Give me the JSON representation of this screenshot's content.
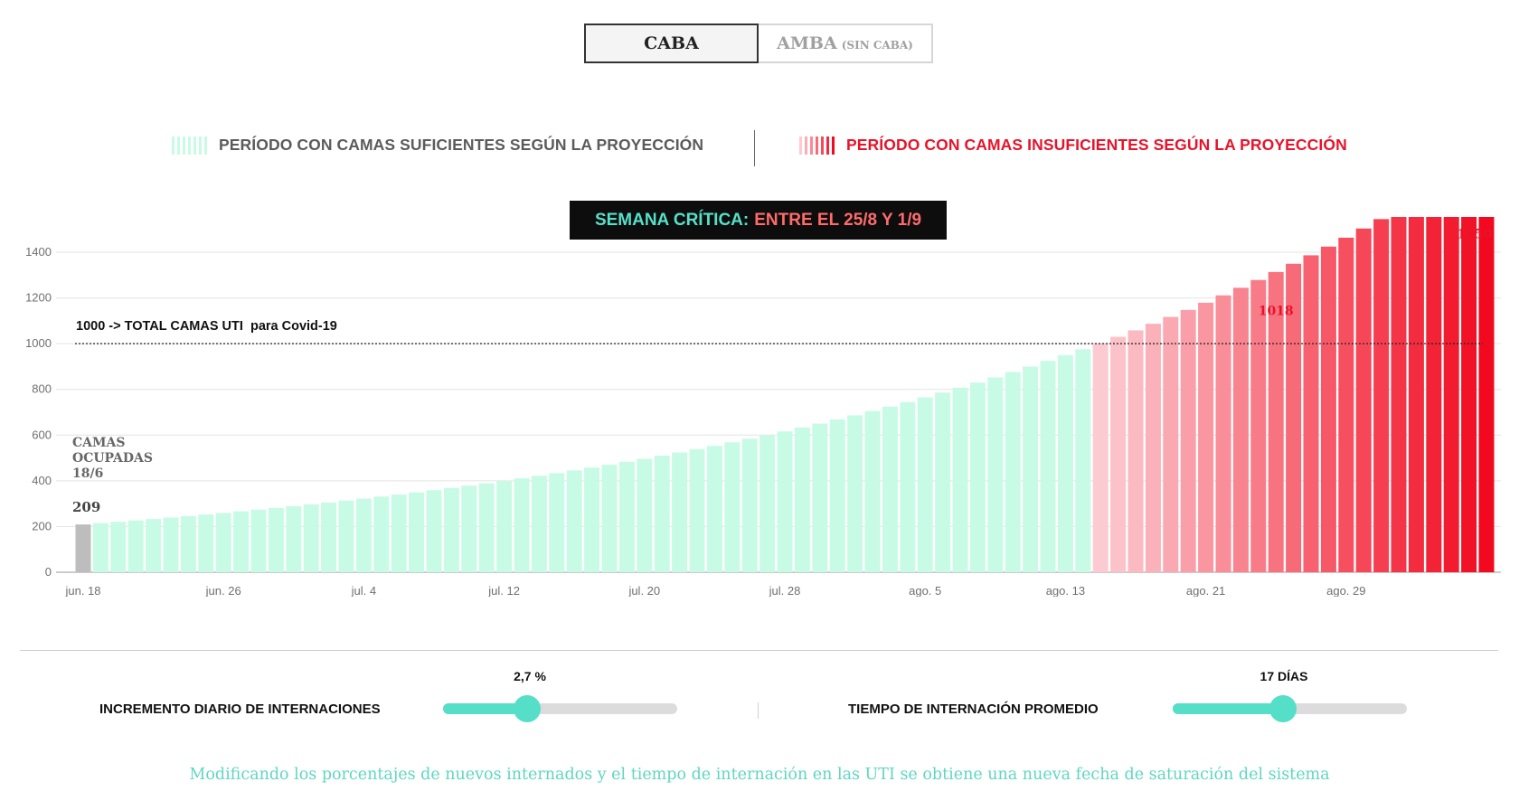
{
  "toggle": {
    "caba_label": "CABA",
    "amba_label": "AMBA",
    "amba_sub": "(SIN CABA)"
  },
  "legend": {
    "sufficient": "PERÍODO CON CAMAS SUFICIENTES SEGÚN LA PROYECCIÓN",
    "insufficient": "PERÍODO CON CAMAS INSUFICIENTES SEGÚN LA PROYECCIÓN"
  },
  "critical": {
    "prefix": "SEMANA CRÍTICA:",
    "range": "ENTRE EL 25/8 Y 1/9"
  },
  "colors": {
    "sufficient": "#c8fbe6",
    "insufficient_light": "#fccbd1",
    "insufficient_dark": "#f2091f",
    "occupied": "#bdbdbd",
    "accent": "#55dec8"
  },
  "controls": {
    "increment": {
      "label": "INCREMENTO DIARIO DE INTERNACIONES",
      "value": "2,7 %",
      "level": 0.36
    },
    "duration": {
      "label": "TIEMPO DE INTERNACIÓN PROMEDIO",
      "value": "17 DÍAS",
      "level": 0.47
    }
  },
  "footnote": "Modificando los porcentajes de nuevos internados y el tiempo de internación en las UTI se obtiene una nueva fecha de saturación del sistema",
  "chart_data": {
    "type": "bar",
    "x_start": "2020-06-18",
    "x_end": "2020-09-06",
    "xticks": [
      "jun. 18",
      "jun. 26",
      "jul. 4",
      "jul. 12",
      "jul. 20",
      "jul. 28",
      "ago. 5",
      "ago. 13",
      "ago. 21",
      "ago. 29"
    ],
    "yticks": [
      "0",
      "200",
      "400",
      "600",
      "800",
      "1000",
      "1200",
      "1400"
    ],
    "ylim": [
      0,
      1400
    ],
    "grid": true,
    "first_value": 209,
    "last_value": 1350,
    "daily_growth": 0.0274,
    "threshold": {
      "value": 1000,
      "label": "1000 -> TOTAL CAMAS UTI  para Covid-19"
    },
    "occupied_note": {
      "lines": [
        "CAMAS",
        "OCUPADAS",
        "18/6"
      ],
      "value": "209"
    },
    "annotations": [
      {
        "date": "2020-08-25",
        "value": 1018,
        "text": "1018"
      },
      {
        "date": "2020-09-06",
        "value": 1350,
        "text": "1350"
      }
    ]
  }
}
